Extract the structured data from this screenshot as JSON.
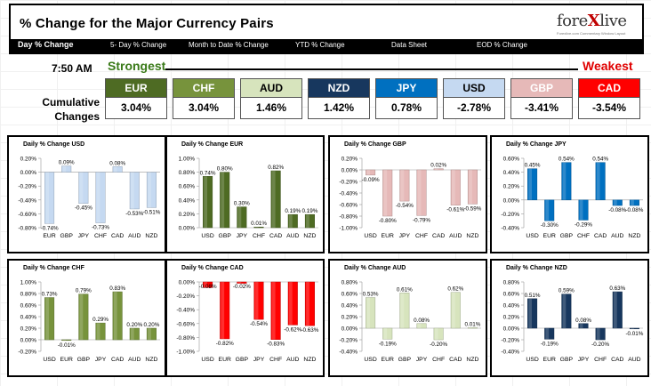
{
  "header": {
    "title": "% Change for the Major Currency Pairs",
    "logo": "forexlive",
    "logo_tagline": "Forexlive.com Commentary Window Layout"
  },
  "nav": {
    "items": [
      "Day % Change",
      "5- Day % Change",
      "Month to Date % Change",
      "YTD % Change",
      "Data Sheet",
      "EOD % Change"
    ]
  },
  "summary": {
    "time": "7:50 AM",
    "strongest_label": "Strongest",
    "weakest_label": "Weakest",
    "cumulative_label": "Cumulative Changes",
    "currencies": [
      {
        "code": "EUR",
        "value": "3.04%",
        "color": "#4e6b23",
        "text_color": "#ffffff"
      },
      {
        "code": "CHF",
        "value": "3.04%",
        "color": "#77933c",
        "text_color": "#ffffff"
      },
      {
        "code": "AUD",
        "value": "1.46%",
        "color": "#d7e4bd",
        "text_color": "#000000"
      },
      {
        "code": "NZD",
        "value": "1.42%",
        "color": "#17375e",
        "text_color": "#ffffff"
      },
      {
        "code": "JPY",
        "value": "0.78%",
        "color": "#0070c0",
        "text_color": "#ffffff"
      },
      {
        "code": "USD",
        "value": "-2.78%",
        "color": "#c5d9f1",
        "text_color": "#000000"
      },
      {
        "code": "GBP",
        "value": "-3.41%",
        "color": "#e6b9b8",
        "text_color": "#ffffff"
      },
      {
        "code": "CAD",
        "value": "-3.54%",
        "color": "#ff0000",
        "text_color": "#ffffff"
      }
    ]
  },
  "chart_data": [
    {
      "type": "bar",
      "title": "Daily % Change USD",
      "categories": [
        "EUR",
        "GBP",
        "JPY",
        "CHF",
        "CAD",
        "AUD",
        "NZD"
      ],
      "values": [
        -0.74,
        0.09,
        -0.45,
        -0.73,
        0.08,
        -0.53,
        -0.51
      ],
      "ylim": [
        -0.8,
        0.2
      ],
      "yticks": [
        "0.20%",
        "0.00%",
        "-0.20%",
        "-0.40%",
        "-0.60%",
        "-0.80%"
      ],
      "data_labels": [
        "-0.74%",
        "0.09%",
        "-0.45%",
        "-0.73%",
        "0.08%",
        "-0.53%",
        "-0.51%"
      ],
      "color": "#c5d9f1"
    },
    {
      "type": "bar",
      "title": "Daily % Change EUR",
      "categories": [
        "USD",
        "GBP",
        "JPY",
        "CHF",
        "CAD",
        "AUD",
        "NZD"
      ],
      "values": [
        0.74,
        0.8,
        0.3,
        0.01,
        0.82,
        0.19,
        0.19
      ],
      "ylim": [
        0,
        1.0
      ],
      "yticks": [
        "1.00%",
        "0.80%",
        "0.60%",
        "0.40%",
        "0.20%",
        "0.00%"
      ],
      "data_labels": [
        "0.74%",
        "0.80%",
        "0.30%",
        "0.01%",
        "0.82%",
        "0.19%",
        "0.19%"
      ],
      "color": "#4e6b23"
    },
    {
      "type": "bar",
      "title": "Daily % Change GBP",
      "categories": [
        "USD",
        "EUR",
        "JPY",
        "CHF",
        "CAD",
        "AUD",
        "NZD"
      ],
      "values": [
        -0.09,
        -0.8,
        -0.54,
        -0.79,
        0.02,
        -0.61,
        -0.59
      ],
      "ylim": [
        -1.0,
        0.2
      ],
      "yticks": [
        "0.20%",
        "0.00%",
        "-0.20%",
        "-0.40%",
        "-0.60%",
        "-0.80%",
        "-1.00%"
      ],
      "data_labels": [
        "-0.09%",
        "-0.80%",
        "-0.54%",
        "-0.79%",
        "0.02%",
        "-0.61%",
        "-0.59%"
      ],
      "color": "#e6b9b8"
    },
    {
      "type": "bar",
      "title": "Daily % Change JPY",
      "categories": [
        "USD",
        "EUR",
        "GBP",
        "CHF",
        "CAD",
        "AUD",
        "NZD"
      ],
      "values": [
        0.45,
        -0.3,
        0.54,
        -0.29,
        0.54,
        -0.08,
        -0.08
      ],
      "ylim": [
        -0.4,
        0.6
      ],
      "yticks": [
        "0.60%",
        "0.40%",
        "0.20%",
        "0.00%",
        "-0.20%",
        "-0.40%"
      ],
      "data_labels": [
        "0.45%",
        "-0.30%",
        "0.54%",
        "-0.29%",
        "0.54%",
        "-0.08%",
        "-0.08%"
      ],
      "color": "#0070c0"
    },
    {
      "type": "bar",
      "title": "Daily % Change CHF",
      "categories": [
        "USD",
        "EUR",
        "GBP",
        "JPY",
        "CAD",
        "AUD",
        "NZD"
      ],
      "values": [
        0.73,
        -0.01,
        0.79,
        0.29,
        0.83,
        0.2,
        0.2
      ],
      "ylim": [
        -0.2,
        1.0
      ],
      "yticks": [
        "1.00%",
        "0.80%",
        "0.60%",
        "0.40%",
        "0.20%",
        "0.00%",
        "-0.20%"
      ],
      "data_labels": [
        "0.73%",
        "-0.01%",
        "0.79%",
        "0.29%",
        "0.83%",
        "0.20%",
        "0.20%"
      ],
      "color": "#77933c"
    },
    {
      "type": "bar",
      "title": "Daily % Change CAD",
      "categories": [
        "USD",
        "EUR",
        "GBP",
        "JPY",
        "CHF",
        "AUD",
        "NZD"
      ],
      "values": [
        -0.08,
        -0.82,
        -0.02,
        -0.54,
        -0.83,
        -0.62,
        -0.63
      ],
      "ylim": [
        -1.0,
        0
      ],
      "yticks": [
        "0.00%",
        "-0.20%",
        "-0.40%",
        "-0.60%",
        "-0.80%",
        "-1.00%"
      ],
      "data_labels": [
        "-0.08%",
        "-0.82%",
        "-0.02%",
        "-0.54%",
        "-0.83%",
        "-0.62%",
        "-0.63%"
      ],
      "color": "#ff0000"
    },
    {
      "type": "bar",
      "title": "Daily % Change AUD",
      "categories": [
        "USD",
        "EUR",
        "GBP",
        "JPY",
        "CHF",
        "CAD",
        "NZD"
      ],
      "values": [
        0.53,
        -0.19,
        0.61,
        0.08,
        -0.2,
        0.62,
        0.01
      ],
      "ylim": [
        -0.4,
        0.8
      ],
      "yticks": [
        "0.80%",
        "0.60%",
        "0.40%",
        "0.20%",
        "0.00%",
        "-0.20%",
        "-0.40%"
      ],
      "data_labels": [
        "0.53%",
        "-0.19%",
        "0.61%",
        "0.08%",
        "-0.20%",
        "0.62%",
        "0.01%"
      ],
      "color": "#d7e4bd"
    },
    {
      "type": "bar",
      "title": "Daily % Change NZD",
      "categories": [
        "USD",
        "EUR",
        "GBP",
        "JPY",
        "CHF",
        "CAD",
        "AUD"
      ],
      "values": [
        0.51,
        -0.19,
        0.59,
        0.08,
        -0.2,
        0.63,
        -0.01
      ],
      "ylim": [
        -0.4,
        0.8
      ],
      "yticks": [
        "0.80%",
        "0.60%",
        "0.40%",
        "0.20%",
        "0.00%",
        "-0.20%",
        "-0.40%"
      ],
      "data_labels": [
        "0.51%",
        "-0.19%",
        "0.59%",
        "0.08%",
        "-0.20%",
        "0.63%",
        "-0.01%"
      ],
      "color": "#17375e"
    }
  ]
}
